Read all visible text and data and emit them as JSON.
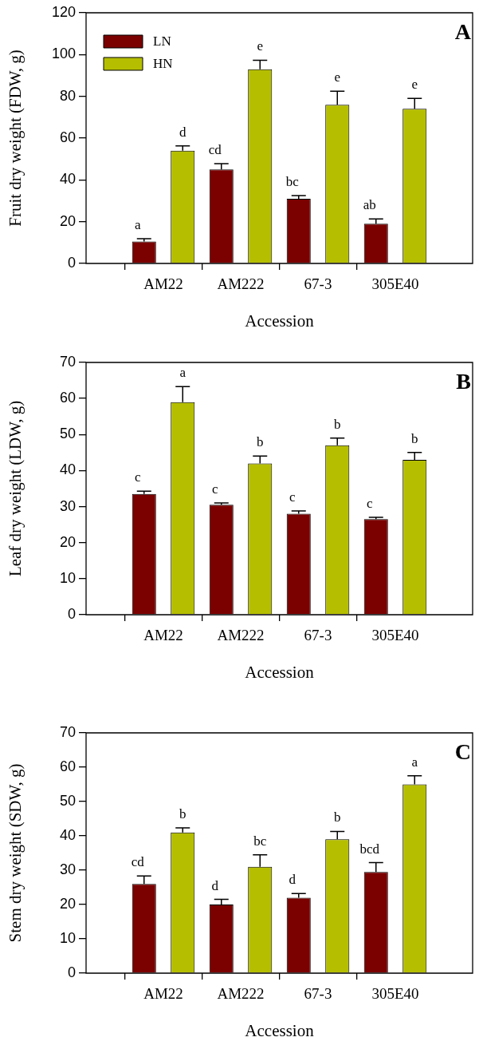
{
  "chart_data": [
    {
      "type": "bar",
      "title": "A",
      "xlabel": "Accession",
      "ylabel": "Fruit dry weight (FDW, g)",
      "categories": [
        null,
        "AM22",
        "AM222",
        "67-3",
        "305E40",
        null
      ],
      "ylim": [
        0,
        120
      ],
      "yticks": [
        0,
        20,
        40,
        60,
        80,
        100,
        120
      ],
      "legend": "top left",
      "grid": false,
      "series": [
        {
          "name": "LN",
          "color": "#7b0000",
          "values": [
            null,
            10.5,
            45,
            31,
            19,
            null
          ],
          "errors": [
            null,
            [
              10.5,
              11.8
            ],
            [
              45,
              47.8
            ],
            [
              31,
              32.5
            ],
            [
              19,
              21.3
            ],
            null
          ],
          "value_labels": [
            null,
            "a",
            "cd",
            "bc",
            "ab",
            null
          ]
        },
        {
          "name": "HN",
          "color": "#b5bf00",
          "values": [
            null,
            54,
            93,
            76,
            74,
            null
          ],
          "errors": [
            null,
            [
              54,
              56.3
            ],
            [
              93,
              97.3
            ],
            [
              76,
              82.5
            ],
            [
              74,
              79
            ],
            null
          ],
          "value_labels": [
            null,
            "d",
            "e",
            "e",
            "e",
            null
          ]
        }
      ]
    },
    {
      "type": "bar",
      "title": "B",
      "xlabel": "Accession",
      "ylabel": "Leaf dry weight (LDW, g)",
      "categories": [
        null,
        "AM22",
        "AM222",
        "67-3",
        "305E40",
        null
      ],
      "ylim": [
        0,
        70
      ],
      "yticks": [
        0,
        10,
        20,
        30,
        40,
        50,
        60,
        70
      ],
      "grid": false,
      "series": [
        {
          "color": "#7b0000",
          "values": [
            null,
            33.5,
            30.5,
            28,
            26.5,
            null
          ],
          "errors": [
            null,
            [
              33.5,
              34.3
            ],
            [
              30.5,
              31
            ],
            [
              28,
              28.8
            ],
            [
              26.5,
              27
            ],
            null
          ],
          "value_labels": [
            null,
            "c",
            "c",
            "c",
            "c",
            null
          ]
        },
        {
          "color": "#b5bf00",
          "values": [
            null,
            59,
            42,
            47,
            43,
            null
          ],
          "errors": [
            null,
            [
              59,
              63.3
            ],
            [
              42,
              44
            ],
            [
              47,
              49
            ],
            [
              43,
              45
            ],
            null
          ],
          "value_labels": [
            null,
            "a",
            "b",
            "b",
            "b",
            null
          ]
        }
      ]
    },
    {
      "type": "bar",
      "title": "C",
      "xlabel": "Accession",
      "ylabel": "Stem dry weight (SDW, g)",
      "categories": [
        null,
        "AM22",
        "AM222",
        "67-3",
        "305E40",
        null
      ],
      "ylim": [
        0,
        70
      ],
      "yticks": [
        0,
        10,
        20,
        30,
        40,
        50,
        60,
        70
      ],
      "grid": false,
      "series": [
        {
          "color": "#7b0000",
          "values": [
            null,
            26,
            20,
            22,
            29.5,
            null
          ],
          "errors": [
            null,
            [
              26,
              28.3
            ],
            [
              20,
              21.5
            ],
            [
              22,
              23.2
            ],
            [
              29.5,
              32.2
            ],
            null
          ],
          "value_labels": [
            null,
            "cd",
            "d",
            "d",
            "bcd",
            null
          ]
        },
        {
          "color": "#b5bf00",
          "values": [
            null,
            41,
            31,
            39,
            55,
            null
          ],
          "errors": [
            null,
            [
              41,
              42.3
            ],
            [
              31,
              34.5
            ],
            [
              39,
              41.3
            ],
            [
              55,
              57.5
            ],
            null
          ],
          "value_labels": [
            null,
            "b",
            "bc",
            "b",
            "a",
            null
          ]
        }
      ]
    }
  ]
}
